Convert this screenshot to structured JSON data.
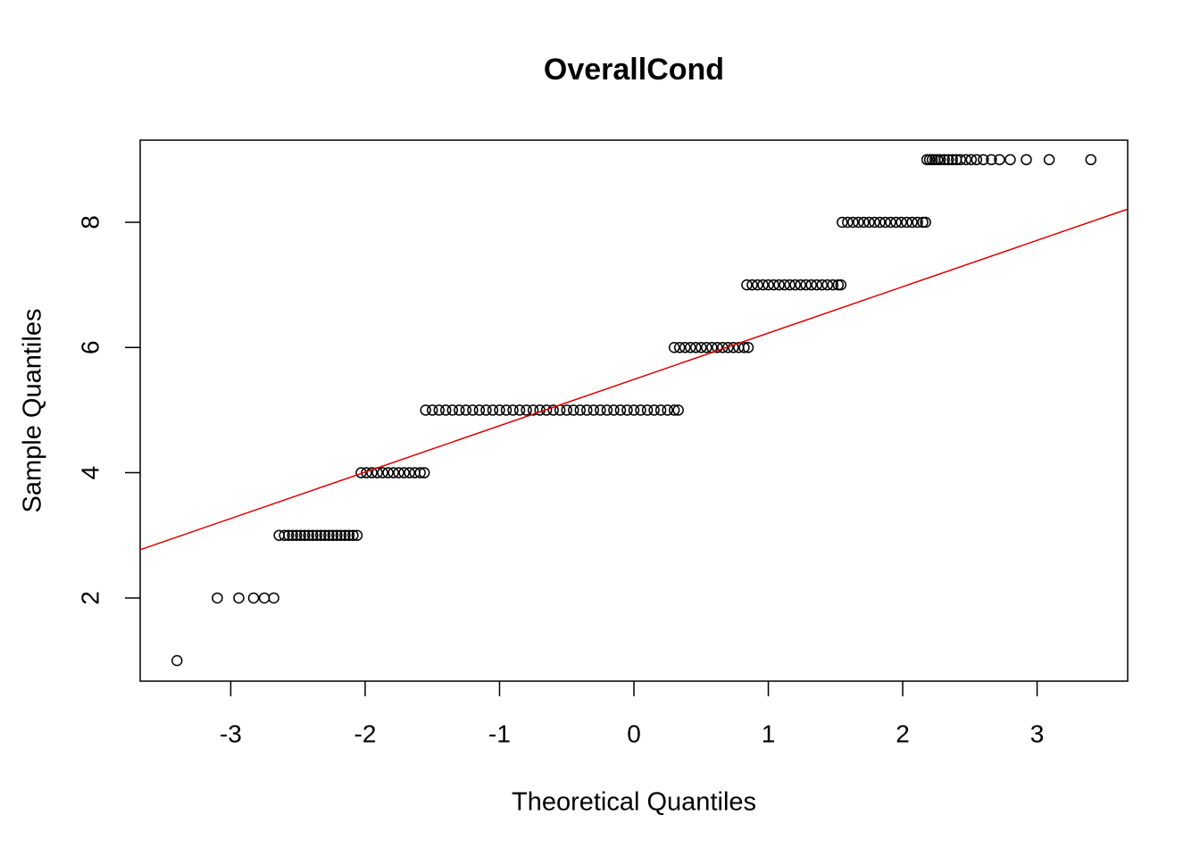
{
  "chart_data": {
    "type": "scatter",
    "title": "OverallCond",
    "x_label": "Theoretical Quantiles",
    "y_label": "Sample Quantiles",
    "xlim": [
      -3.674,
      3.674
    ],
    "ylim": [
      0.672,
      9.311
    ],
    "xticks": [
      -3,
      -2,
      -1,
      0,
      1,
      2,
      3
    ],
    "yticks": [
      2,
      4,
      6,
      8
    ],
    "color": "#000000",
    "x": [
      -3.4,
      -3.1,
      -2.94,
      -2.83,
      -2.75,
      -2.68,
      -2.64,
      -2.6,
      -2.57,
      -2.54,
      -2.51,
      -2.48,
      -2.45,
      -2.42,
      -2.39,
      -2.36,
      -2.33,
      -2.3,
      -2.27,
      -2.24,
      -2.21,
      -2.18,
      -2.15,
      -2.12,
      -2.09,
      -2.06,
      -2.03,
      -1.99,
      -1.95,
      -1.91,
      -1.87,
      -1.83,
      -1.79,
      -1.75,
      -1.71,
      -1.67,
      -1.63,
      -1.59,
      -1.56,
      -1.55,
      -1.5,
      -1.45,
      -1.4,
      -1.35,
      -1.3,
      -1.25,
      -1.2,
      -1.15,
      -1.1,
      -1.05,
      -1,
      -0.95,
      -0.9,
      -0.85,
      -0.8,
      -0.75,
      -0.7,
      -0.65,
      -0.6,
      -0.55,
      -0.5,
      -0.45,
      -0.4,
      -0.35,
      -0.3,
      -0.25,
      -0.2,
      -0.15,
      -0.1,
      -0.05,
      0,
      0.05,
      0.1,
      0.15,
      0.2,
      0.25,
      0.3,
      0.33,
      0.3,
      0.34,
      0.38,
      0.42,
      0.46,
      0.5,
      0.54,
      0.58,
      0.62,
      0.66,
      0.7,
      0.74,
      0.78,
      0.82,
      0.85,
      0.84,
      0.88,
      0.92,
      0.96,
      1,
      1.04,
      1.08,
      1.12,
      1.16,
      1.2,
      1.24,
      1.28,
      1.32,
      1.36,
      1.4,
      1.44,
      1.48,
      1.52,
      1.54,
      1.55,
      1.59,
      1.63,
      1.67,
      1.71,
      1.75,
      1.79,
      1.83,
      1.87,
      1.91,
      1.95,
      1.99,
      2.03,
      2.07,
      2.11,
      2.15,
      2.17,
      2.18,
      2.2,
      2.22,
      2.24,
      2.26,
      2.28,
      2.31,
      2.34,
      2.37,
      2.4,
      2.43,
      2.47,
      2.51,
      2.55,
      2.6,
      2.66,
      2.72,
      2.8,
      2.92,
      3.09,
      3.4
    ],
    "values": [
      1,
      2,
      2,
      2,
      2,
      2,
      3,
      3,
      3,
      3,
      3,
      3,
      3,
      3,
      3,
      3,
      3,
      3,
      3,
      3,
      3,
      3,
      3,
      3,
      3,
      3,
      4,
      4,
      4,
      4,
      4,
      4,
      4,
      4,
      4,
      4,
      4,
      4,
      4,
      5,
      5,
      5,
      5,
      5,
      5,
      5,
      5,
      5,
      5,
      5,
      5,
      5,
      5,
      5,
      5,
      5,
      5,
      5,
      5,
      5,
      5,
      5,
      5,
      5,
      5,
      5,
      5,
      5,
      5,
      5,
      5,
      5,
      5,
      5,
      5,
      5,
      5,
      5,
      6,
      6,
      6,
      6,
      6,
      6,
      6,
      6,
      6,
      6,
      6,
      6,
      6,
      6,
      6,
      7,
      7,
      7,
      7,
      7,
      7,
      7,
      7,
      7,
      7,
      7,
      7,
      7,
      7,
      7,
      7,
      7,
      7,
      7,
      8,
      8,
      8,
      8,
      8,
      8,
      8,
      8,
      8,
      8,
      8,
      8,
      8,
      8,
      8,
      8,
      8,
      9,
      9,
      9,
      9,
      9,
      9,
      9,
      9,
      9,
      9,
      9,
      9,
      9,
      9,
      9,
      9,
      9,
      9,
      9,
      9,
      9
    ],
    "reference_line": {
      "x": [
        -3.674,
        3.674
      ],
      "y": [
        2.77,
        8.21
      ],
      "color": "#dd0000"
    }
  }
}
